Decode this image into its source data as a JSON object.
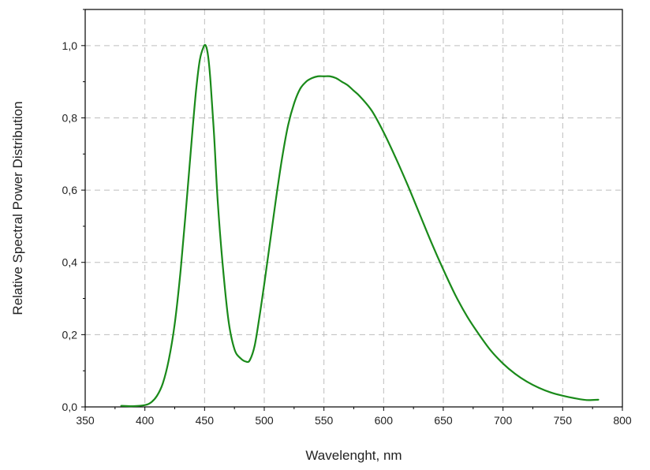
{
  "chart_data": {
    "type": "line",
    "xlabel": "Wavelenght, nm",
    "ylabel": "Relative Spectral Power Distribution",
    "xlim": [
      350,
      800
    ],
    "ylim": [
      0,
      1.1
    ],
    "x_ticks": [
      350,
      400,
      450,
      500,
      550,
      600,
      650,
      700,
      750,
      800
    ],
    "x_tick_labels": [
      "350",
      "400",
      "450",
      "500",
      "550",
      "600",
      "650",
      "700",
      "750",
      "800"
    ],
    "y_ticks": [
      0,
      0.2,
      0.4,
      0.6,
      0.8,
      1.0
    ],
    "y_tick_labels": [
      "0,0",
      "0,2",
      "0,4",
      "0,6",
      "0,8",
      "1,0"
    ],
    "grid": true,
    "series": [
      {
        "color": "#1a8a1a",
        "x": [
          380,
          390,
          400,
          405,
          410,
          415,
          420,
          425,
          430,
          435,
          440,
          443,
          446,
          449,
          451,
          453,
          455,
          458,
          461,
          465,
          470,
          475,
          480,
          485,
          488,
          492,
          496,
          500,
          505,
          510,
          515,
          520,
          525,
          530,
          535,
          540,
          545,
          550,
          555,
          560,
          565,
          570,
          575,
          580,
          590,
          600,
          610,
          620,
          630,
          640,
          650,
          660,
          670,
          680,
          690,
          700,
          710,
          720,
          730,
          740,
          750,
          760,
          770,
          780
        ],
        "y": [
          0.003,
          0.002,
          0.005,
          0.012,
          0.03,
          0.065,
          0.13,
          0.23,
          0.38,
          0.57,
          0.77,
          0.88,
          0.96,
          0.995,
          1.0,
          0.97,
          0.9,
          0.75,
          0.57,
          0.4,
          0.24,
          0.16,
          0.135,
          0.125,
          0.13,
          0.17,
          0.25,
          0.34,
          0.46,
          0.58,
          0.69,
          0.78,
          0.84,
          0.88,
          0.9,
          0.91,
          0.915,
          0.915,
          0.915,
          0.91,
          0.9,
          0.89,
          0.875,
          0.86,
          0.82,
          0.76,
          0.69,
          0.615,
          0.535,
          0.455,
          0.38,
          0.31,
          0.25,
          0.2,
          0.155,
          0.12,
          0.092,
          0.07,
          0.053,
          0.04,
          0.031,
          0.024,
          0.019,
          0.02
        ]
      }
    ]
  }
}
